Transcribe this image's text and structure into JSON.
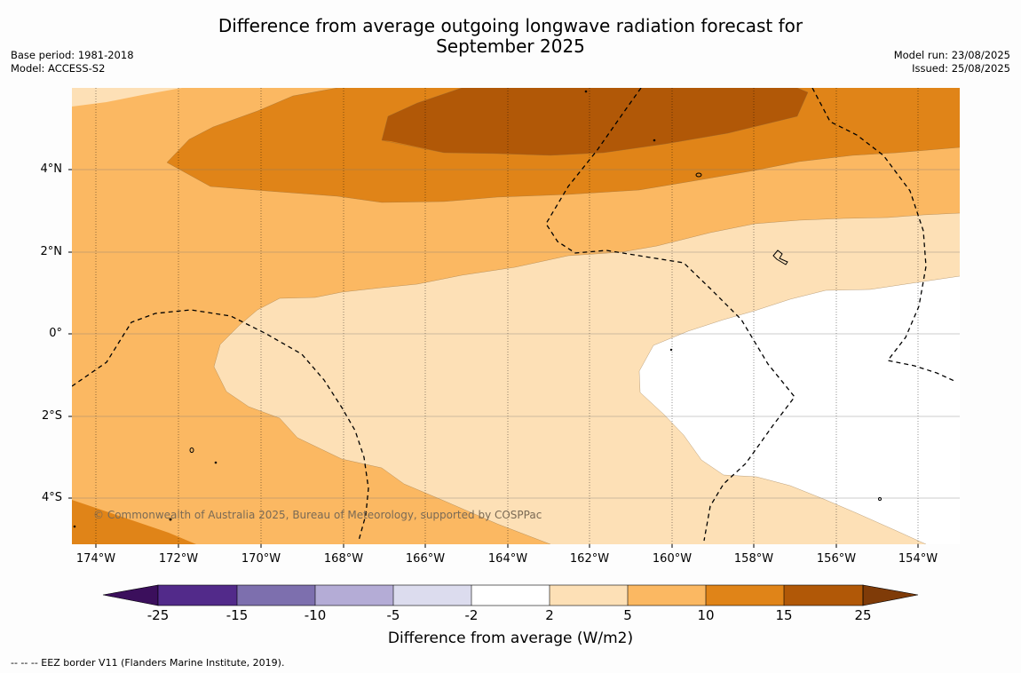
{
  "title_line1": "Difference from average outgoing longwave radiation forecast for",
  "title_line2": "September 2025",
  "base_period": "Base period: 1981-2018",
  "model": "Model: ACCESS-S2",
  "model_run": "Model run: 23/08/2025",
  "issued": "Issued: 25/08/2025",
  "copyright": "© Commonwealth of Australia 2025, Bureau of Meteorology, supported by COSPPac",
  "colorbar_title": "Difference from average (W/m2)",
  "footnote": "--  --  -- EEZ border V11 (Flanders Marine Institute, 2019).",
  "x_ticks": [
    "174°W",
    "172°W",
    "170°W",
    "168°W",
    "166°W",
    "164°W",
    "162°W",
    "160°W",
    "158°W",
    "156°W",
    "154°W"
  ],
  "y_ticks": [
    "4°N",
    "2°N",
    "0°",
    "2°S",
    "4°S"
  ],
  "colorbar": {
    "bounds": [
      "-25",
      "-15",
      "-10",
      "-5",
      "-2",
      "2",
      "5",
      "10",
      "15",
      "25"
    ],
    "colors": [
      "#3b0f5c",
      "#522a8a",
      "#7d6fae",
      "#b4acd6",
      "#dcdcee",
      "#ffffff",
      "#fde0b6",
      "#fbb862",
      "#e08418",
      "#b15807",
      "#7f3b08"
    ]
  },
  "colors": {
    "band_2_5": "#fde0b6",
    "band_5_10": "#fbb862",
    "band_10_15": "#e08418",
    "band_15_25": "#b15807",
    "band_neutral": "#ffffff"
  }
}
